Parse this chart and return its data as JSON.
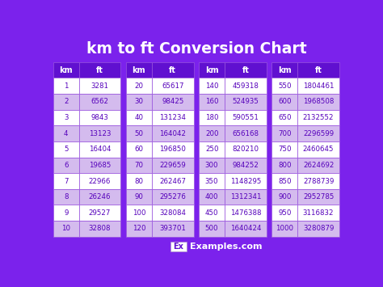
{
  "title": "km to ft Conversion Chart",
  "bg_color": "#7B22EC",
  "header_bg": "#6010D0",
  "cell_light": "#FFFFFF",
  "cell_dark": "#D4BBEE",
  "border_color": "#9955DD",
  "header_text": "#FFFFFF",
  "cell_text": "#5500BB",
  "tables": [
    {
      "km": [
        1,
        2,
        3,
        4,
        5,
        6,
        7,
        8,
        9,
        10
      ],
      "ft": [
        3281,
        6562,
        9843,
        13123,
        16404,
        19685,
        22966,
        26246,
        29527,
        32808
      ]
    },
    {
      "km": [
        20,
        30,
        40,
        50,
        60,
        70,
        80,
        90,
        100,
        120
      ],
      "ft": [
        65617,
        98425,
        131234,
        164042,
        196850,
        229659,
        262467,
        295276,
        328084,
        393701
      ]
    },
    {
      "km": [
        140,
        160,
        180,
        200,
        250,
        300,
        350,
        400,
        450,
        500
      ],
      "ft": [
        459318,
        524935,
        590551,
        656168,
        820210,
        984252,
        1148295,
        1312341,
        1476388,
        1640424
      ]
    },
    {
      "km": [
        550,
        600,
        650,
        700,
        750,
        800,
        850,
        900,
        950,
        1000
      ],
      "ft": [
        1804461,
        1968508,
        2132552,
        2296599,
        2460645,
        2624692,
        2788739,
        2952785,
        3116832,
        3280879
      ]
    }
  ]
}
